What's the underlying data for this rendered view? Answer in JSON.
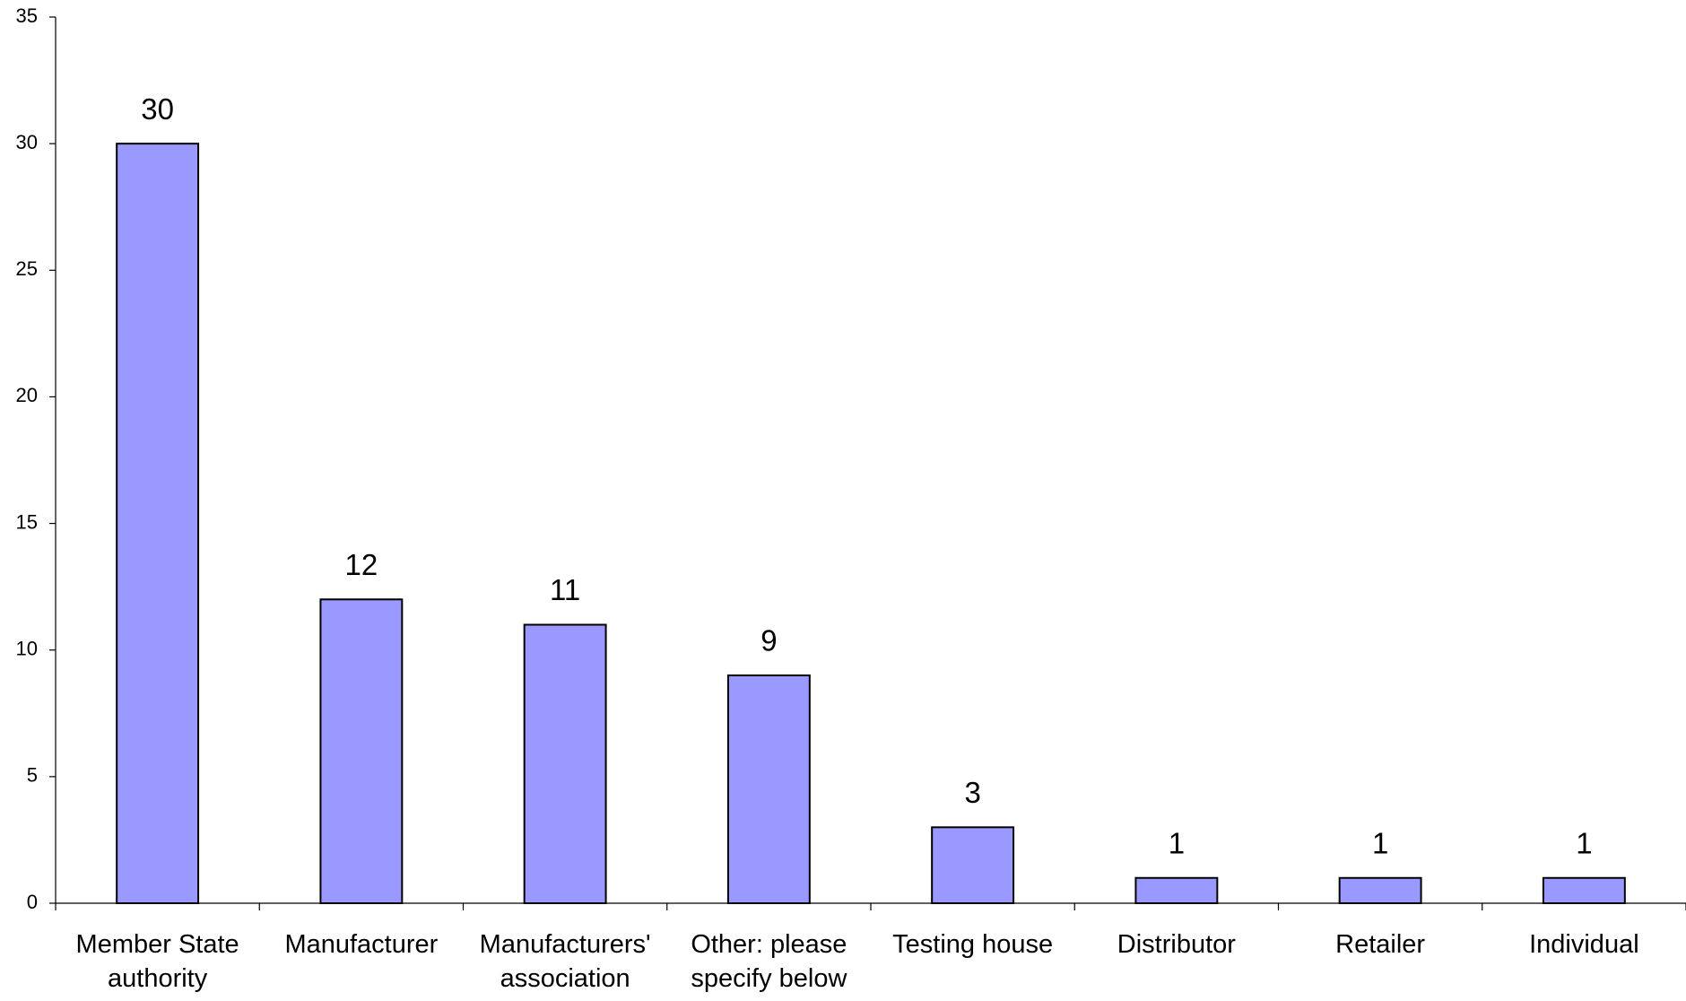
{
  "chart_data": {
    "type": "bar",
    "categories": [
      "Member State authority",
      "Manufacturer",
      "Manufacturers' association",
      "Other: please specify below",
      "Testing house",
      "Distributor",
      "Retailer",
      "Individual"
    ],
    "values": [
      30,
      12,
      11,
      9,
      3,
      1,
      1,
      1
    ],
    "color": "#9999ff",
    "ylim": [
      0,
      35
    ],
    "yticks": [
      0,
      5,
      10,
      15,
      20,
      25,
      30,
      35
    ],
    "grid": false
  }
}
